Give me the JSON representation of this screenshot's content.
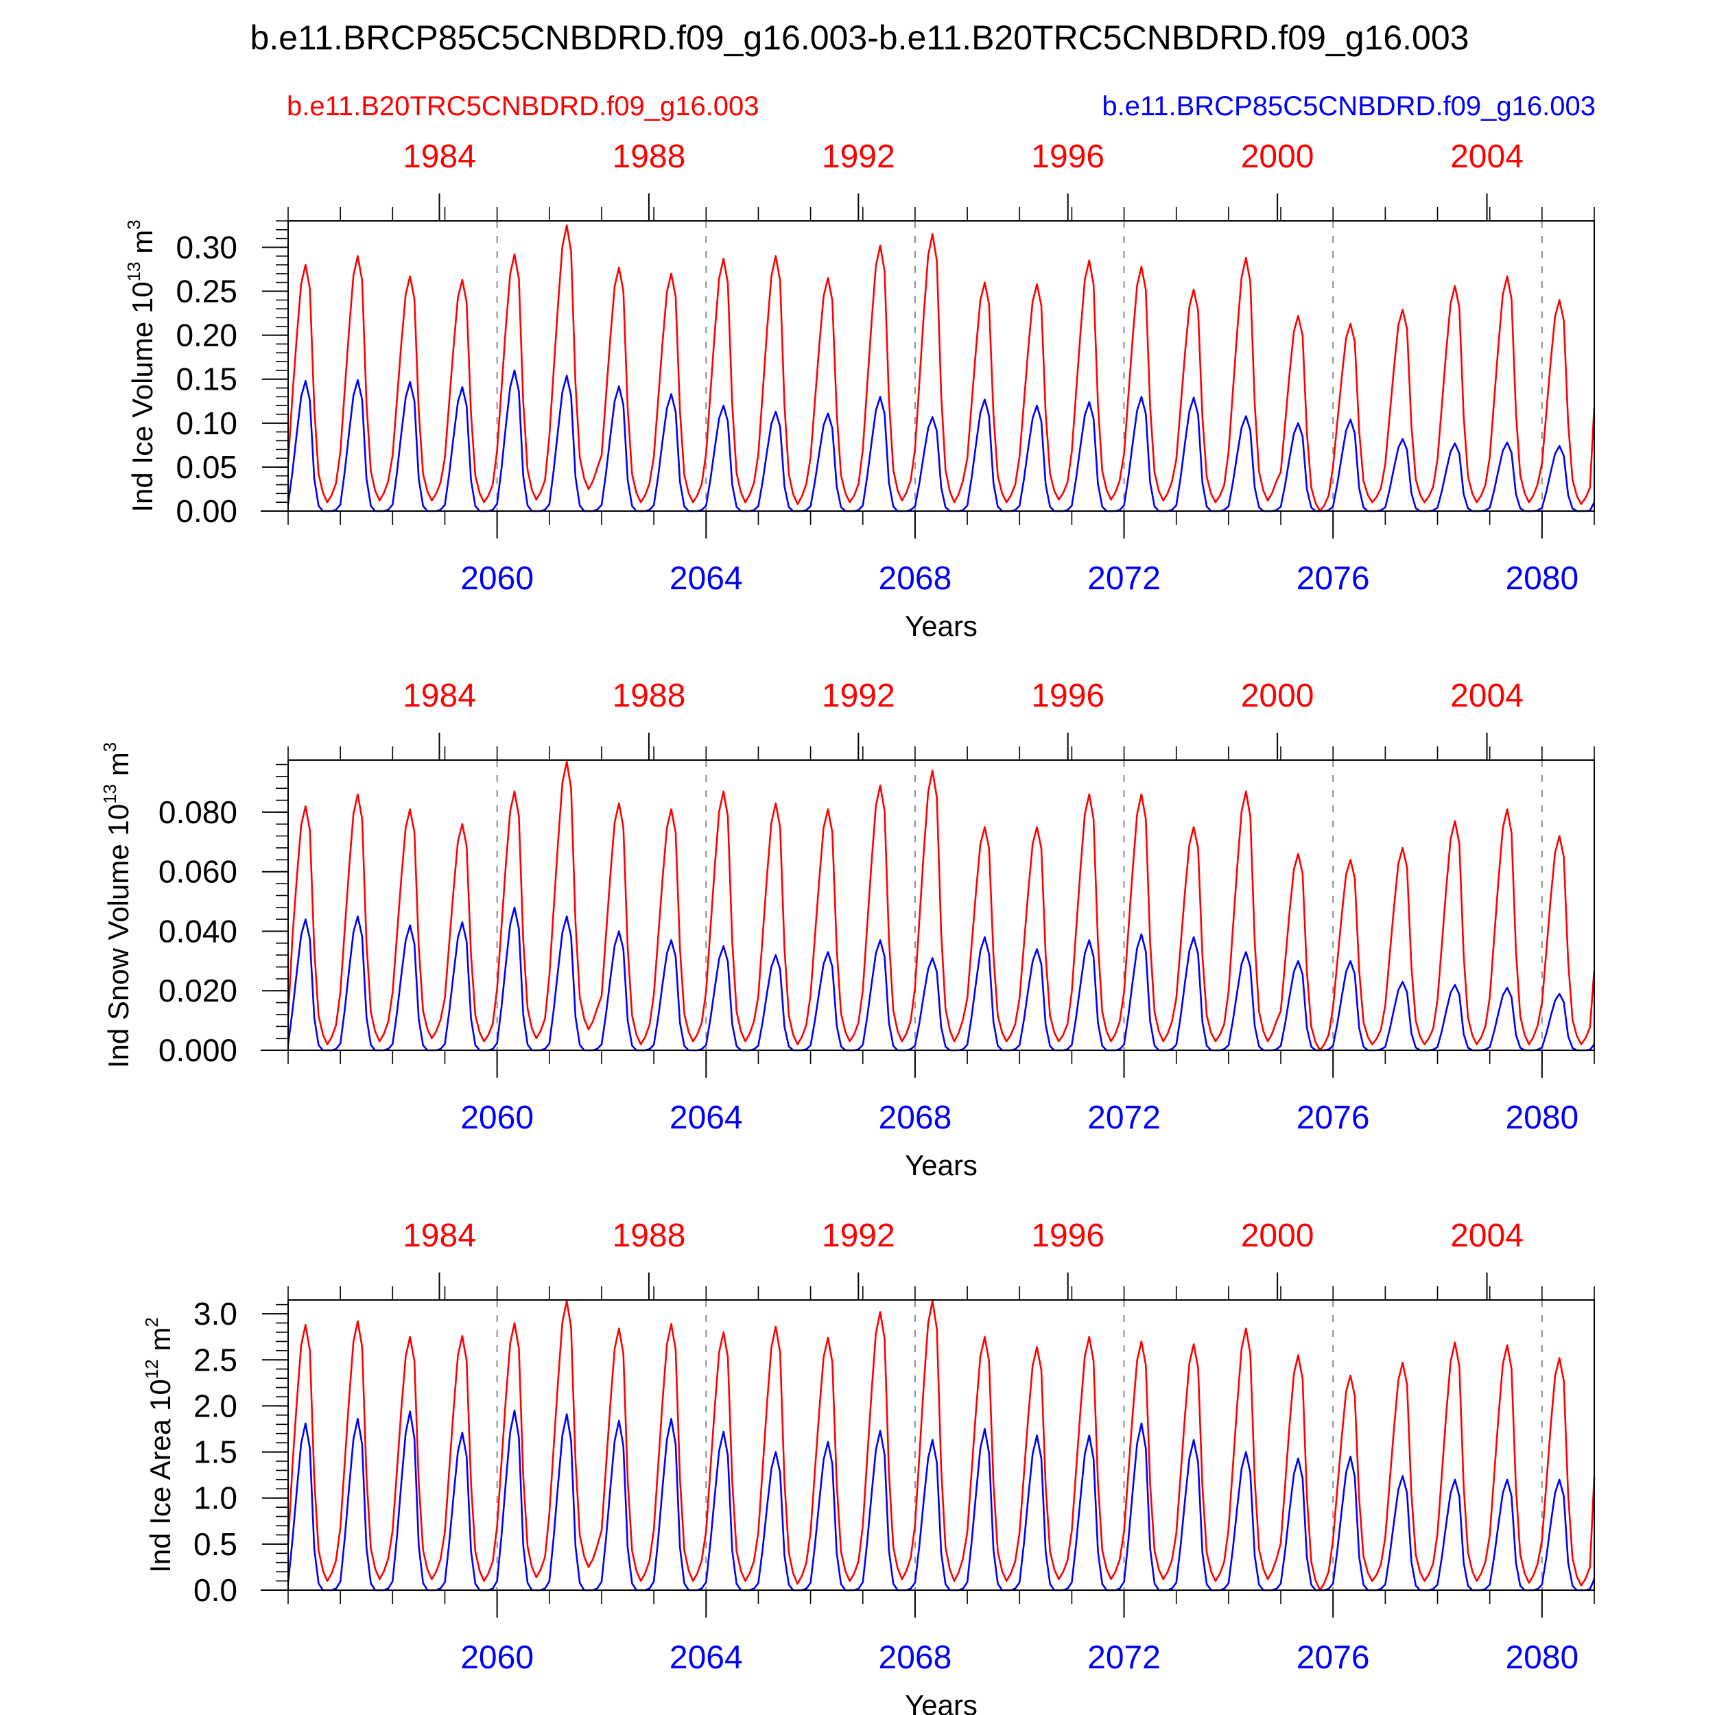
{
  "title": "b.e11.BRCP85C5CNBDRD.f09_g16.003-b.e11.B20TRC5CNBDRD.f09_g16.003",
  "legend": {
    "red_label": "b.e11.B20TRC5CNBDRD.f09_g16.003",
    "blue_label": "b.e11.BRCP85C5CNBDRD.f09_g16.003"
  },
  "colors": {
    "red": "#ff0000",
    "blue": "#0000ff",
    "axis": "#000000",
    "grid": "#8c8c8c"
  },
  "chart_data": [
    {
      "type": "line",
      "title": "",
      "ylabel": "Ind Ice Volume 10^13 m^3",
      "ylabel_main": "Ind Ice Volume 10",
      "ylabel_exp": "13",
      "ylabel_unit": "m",
      "ylabel_unit_exp": "3",
      "xlabel": "Years",
      "ylim": [
        0,
        0.33
      ],
      "yticks": [
        "0.00",
        "0.05",
        "0.10",
        "0.15",
        "0.20",
        "0.25",
        "0.30"
      ],
      "ytick_values": [
        0,
        0.05,
        0.1,
        0.15,
        0.2,
        0.25,
        0.3
      ],
      "ytick_minor_step": 0.01,
      "xlim_bottom": [
        2056,
        2081
      ],
      "bottom_xticks": [
        "2060",
        "2064",
        "2068",
        "2072",
        "2076",
        "2080"
      ],
      "top_xticks": [
        "1984",
        "1988",
        "1992",
        "1996",
        "2000",
        "2004"
      ],
      "series": [
        {
          "name": "b.e11.B20TRC5CNBDRD.f09_g16.003",
          "color": "red",
          "peaks": [
            0.28,
            0.29,
            0.267,
            0.263,
            0.292,
            0.325,
            0.277,
            0.27,
            0.287,
            0.29,
            0.265,
            0.302,
            0.315,
            0.26,
            0.258,
            0.285,
            0.278,
            0.252,
            0.288,
            0.222,
            0.213,
            0.229,
            0.256,
            0.267,
            0.24
          ],
          "troughs": [
            0.01,
            0.012,
            0.012,
            0.01,
            0.013,
            0.025,
            0.01,
            0.01,
            0.01,
            0.008,
            0.01,
            0.012,
            0.01,
            0.01,
            0.013,
            0.013,
            0.012,
            0.01,
            0.012,
            0.0,
            0.01,
            0.01,
            0.01,
            0.01,
            0.008
          ],
          "start": 0.055,
          "end": 0.118
        },
        {
          "name": "b.e11.BRCP85C5CNBDRD.f09_g16.003",
          "color": "blue",
          "peaks": [
            0.148,
            0.149,
            0.147,
            0.141,
            0.16,
            0.154,
            0.142,
            0.133,
            0.12,
            0.113,
            0.111,
            0.13,
            0.107,
            0.127,
            0.12,
            0.124,
            0.13,
            0.129,
            0.108,
            0.1,
            0.104,
            0.082,
            0.077,
            0.078,
            0.074
          ],
          "troughs": [
            0.0,
            0.0,
            0.0,
            0.0,
            0.0,
            0.0,
            0.0,
            0.0,
            0.0,
            0.0,
            0.0,
            0.0,
            0.0,
            0.0,
            0.0,
            0.0,
            0.0,
            0.0,
            0.0,
            0.0,
            0.0,
            0.0,
            0.0,
            0.0,
            0.0
          ],
          "start": 0.008,
          "end": 0.01
        }
      ]
    },
    {
      "type": "line",
      "title": "",
      "ylabel": "Ind Snow Volume 10^13 m^3",
      "ylabel_main": "Ind Snow Volume 10",
      "ylabel_exp": "13",
      "ylabel_unit": "m",
      "ylabel_unit_exp": "3",
      "xlabel": "Years",
      "ylim": [
        0,
        0.0975
      ],
      "yticks": [
        "0.000",
        "0.020",
        "0.040",
        "0.060",
        "0.080"
      ],
      "ytick_values": [
        0,
        0.02,
        0.04,
        0.06,
        0.08
      ],
      "ytick_minor_step": 0.004,
      "xlim_bottom": [
        2056,
        2081
      ],
      "bottom_xticks": [
        "2060",
        "2064",
        "2068",
        "2072",
        "2076",
        "2080"
      ],
      "top_xticks": [
        "1984",
        "1988",
        "1992",
        "1996",
        "2000",
        "2004"
      ],
      "series": [
        {
          "name": "b.e11.B20TRC5CNBDRD.f09_g16.003",
          "color": "red",
          "peaks": [
            0.082,
            0.086,
            0.081,
            0.076,
            0.087,
            0.097,
            0.083,
            0.081,
            0.087,
            0.083,
            0.081,
            0.089,
            0.094,
            0.075,
            0.075,
            0.086,
            0.086,
            0.075,
            0.087,
            0.066,
            0.064,
            0.068,
            0.077,
            0.081,
            0.072
          ],
          "troughs": [
            0.002,
            0.003,
            0.004,
            0.003,
            0.004,
            0.007,
            0.002,
            0.003,
            0.003,
            0.002,
            0.003,
            0.003,
            0.003,
            0.003,
            0.003,
            0.003,
            0.003,
            0.003,
            0.003,
            0.0,
            0.002,
            0.002,
            0.002,
            0.002,
            0.002
          ],
          "start": 0.011,
          "end": 0.027
        },
        {
          "name": "b.e11.BRCP85C5CNBDRD.f09_g16.003",
          "color": "blue",
          "peaks": [
            0.044,
            0.045,
            0.042,
            0.043,
            0.048,
            0.045,
            0.04,
            0.037,
            0.035,
            0.032,
            0.033,
            0.037,
            0.031,
            0.038,
            0.034,
            0.037,
            0.039,
            0.038,
            0.033,
            0.03,
            0.03,
            0.023,
            0.022,
            0.021,
            0.019
          ],
          "troughs": [
            0.0,
            0.0,
            0.0,
            0.0,
            0.0,
            0.0,
            0.0,
            0.0,
            0.0,
            0.0,
            0.0,
            0.0,
            0.0,
            0.0,
            0.0,
            0.0,
            0.0,
            0.0,
            0.0,
            0.0,
            0.0,
            0.0,
            0.0,
            0.0,
            0.0
          ],
          "start": 0.002,
          "end": 0.002
        }
      ]
    },
    {
      "type": "line",
      "title": "",
      "ylabel": "Ind Ice Area 10^12 m^2",
      "ylabel_main": "Ind Ice Area 10",
      "ylabel_exp": "12",
      "ylabel_unit": "m",
      "ylabel_unit_exp": "2",
      "xlabel": "Years",
      "ylim": [
        0,
        3.15
      ],
      "yticks": [
        "0.0",
        "0.5",
        "1.0",
        "1.5",
        "2.0",
        "2.5",
        "3.0"
      ],
      "ytick_values": [
        0,
        0.5,
        1.0,
        1.5,
        2.0,
        2.5,
        3.0
      ],
      "ytick_minor_step": 0.1,
      "xlim_bottom": [
        2056,
        2081
      ],
      "bottom_xticks": [
        "2060",
        "2064",
        "2068",
        "2072",
        "2076",
        "2080"
      ],
      "top_xticks": [
        "1984",
        "1988",
        "1992",
        "1996",
        "2000",
        "2004"
      ],
      "series": [
        {
          "name": "b.e11.B20TRC5CNBDRD.f09_g16.003",
          "color": "red",
          "peaks": [
            2.88,
            2.92,
            2.75,
            2.76,
            2.9,
            3.14,
            2.84,
            2.89,
            2.8,
            2.86,
            2.74,
            3.02,
            3.14,
            2.75,
            2.64,
            2.75,
            2.7,
            2.67,
            2.84,
            2.55,
            2.33,
            2.47,
            2.69,
            2.66,
            2.52
          ],
          "troughs": [
            0.1,
            0.12,
            0.12,
            0.1,
            0.14,
            0.25,
            0.1,
            0.1,
            0.1,
            0.07,
            0.1,
            0.12,
            0.1,
            0.1,
            0.12,
            0.12,
            0.12,
            0.1,
            0.12,
            0.0,
            0.1,
            0.1,
            0.1,
            0.08,
            0.05
          ],
          "start": 0.5,
          "end": 1.23
        },
        {
          "name": "b.e11.BRCP85C5CNBDRD.f09_g16.003",
          "color": "blue",
          "peaks": [
            1.81,
            1.86,
            1.94,
            1.71,
            1.95,
            1.91,
            1.84,
            1.86,
            1.72,
            1.5,
            1.61,
            1.73,
            1.63,
            1.75,
            1.68,
            1.68,
            1.81,
            1.63,
            1.5,
            1.43,
            1.45,
            1.24,
            1.2,
            1.2,
            1.2
          ],
          "troughs": [
            0.0,
            0.0,
            0.0,
            0.0,
            0.0,
            0.0,
            0.0,
            0.0,
            0.0,
            0.0,
            0.0,
            0.0,
            0.0,
            0.0,
            0.0,
            0.0,
            0.0,
            0.0,
            0.0,
            0.0,
            0.0,
            0.0,
            0.0,
            0.0,
            0.0
          ],
          "start": 0.08,
          "end": 0.12
        }
      ]
    }
  ]
}
